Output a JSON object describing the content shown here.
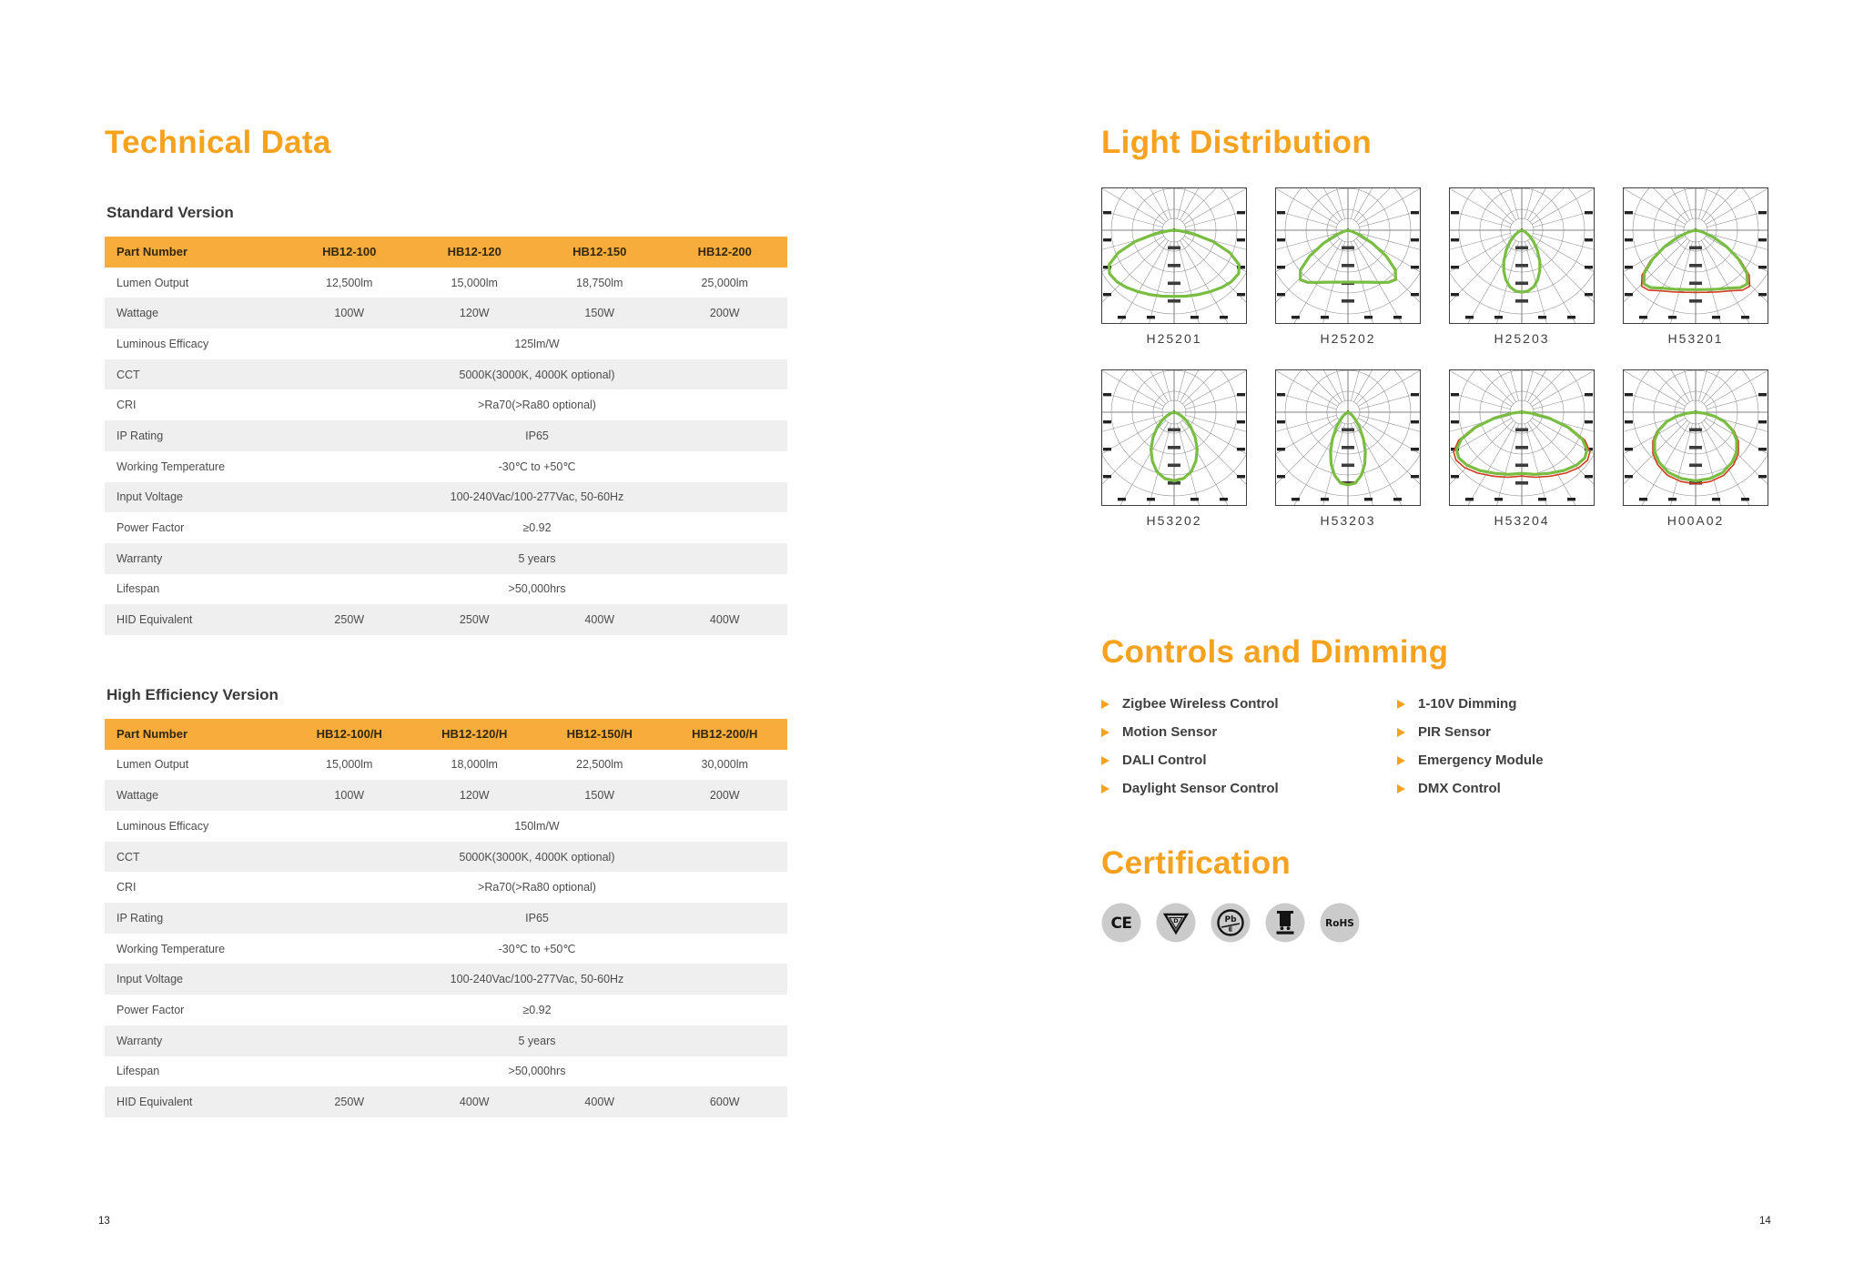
{
  "colors": {
    "accent": "#F6A21E",
    "table_header": "#F7AC3B",
    "row_alt": "#EFEFEF",
    "curve_green": "#79BE43",
    "curve_red": "#D03A20",
    "badge_gray": "#CBCBCB"
  },
  "page": {
    "left_number": "13",
    "right_number": "14"
  },
  "left": {
    "title": "Technical Data",
    "tables": [
      {
        "subtitle": "Standard Version",
        "header": [
          "Part Number",
          "HB12-100",
          "HB12-120",
          "HB12-150",
          "HB12-200"
        ],
        "rows": [
          {
            "label": "Lumen Output",
            "values": [
              "12,500lm",
              "15,000lm",
              "18,750lm",
              "25,000lm"
            ]
          },
          {
            "label": "Wattage",
            "values": [
              "100W",
              "120W",
              "150W",
              "200W"
            ]
          },
          {
            "label": "Luminous Efficacy",
            "span": "125lm/W"
          },
          {
            "label": "CCT",
            "span": "5000K(3000K, 4000K optional)"
          },
          {
            "label": "CRI",
            "span": ">Ra70(>Ra80 optional)"
          },
          {
            "label": "IP Rating",
            "span": "IP65"
          },
          {
            "label": "Working Temperature",
            "span": "-30℃ to +50℃"
          },
          {
            "label": "Input Voltage",
            "span": "100-240Vac/100-277Vac, 50-60Hz"
          },
          {
            "label": "Power Factor",
            "span": "≥0.92"
          },
          {
            "label": "Warranty",
            "span": "5 years"
          },
          {
            "label": "Lifespan",
            "span": ">50,000hrs"
          },
          {
            "label": "HID Equivalent",
            "values": [
              "250W",
              "250W",
              "400W",
              "400W"
            ]
          }
        ]
      },
      {
        "subtitle": "High Efficiency Version",
        "header": [
          "Part Number",
          "HB12-100/H",
          "HB12-120/H",
          "HB12-150/H",
          "HB12-200/H"
        ],
        "rows": [
          {
            "label": "Lumen Output",
            "values": [
              "15,000lm",
              "18,000lm",
              "22,500lm",
              "30,000lm"
            ]
          },
          {
            "label": "Wattage",
            "values": [
              "100W",
              "120W",
              "150W",
              "200W"
            ]
          },
          {
            "label": "Luminous Efficacy",
            "span": "150lm/W"
          },
          {
            "label": "CCT",
            "span": "5000K(3000K, 4000K optional)"
          },
          {
            "label": "CRI",
            "span": ">Ra70(>Ra80 optional)"
          },
          {
            "label": "IP Rating",
            "span": "IP65"
          },
          {
            "label": "Working Temperature",
            "span": "-30℃ to +50℃"
          },
          {
            "label": "Input Voltage",
            "span": "100-240Vac/100-277Vac, 50-60Hz"
          },
          {
            "label": "Power Factor",
            "span": "≥0.92"
          },
          {
            "label": "Warranty",
            "span": "5 years"
          },
          {
            "label": "Lifespan",
            "span": ">50,000hrs"
          },
          {
            "label": "HID Equivalent",
            "values": [
              "250W",
              "400W",
              "400W",
              "600W"
            ]
          }
        ]
      }
    ]
  },
  "right": {
    "light_distribution": {
      "title": "Light Distribution"
    },
    "controls": {
      "title": "Controls and Dimming",
      "left_items": [
        "Zigbee Wireless Control",
        "Motion Sensor",
        "DALI Control",
        "Daylight Sensor Control"
      ],
      "right_items": [
        "1-10V Dimming",
        "PIR Sensor",
        "Emergency Module",
        "DMX Control"
      ]
    },
    "certification": {
      "title": "Certification",
      "badges": [
        {
          "id": "ce",
          "label": "CE"
        },
        {
          "id": "d-mark",
          "label": "D"
        },
        {
          "id": "pb-free",
          "label": "Pb",
          "sub": "E"
        },
        {
          "id": "weee",
          "label": ""
        },
        {
          "id": "rohs",
          "label": "RoHS"
        }
      ]
    }
  },
  "chart_data": {
    "type": "polar-distribution",
    "note": "photometric light distribution curves; profile = [angle_deg_from_nadir, radius_fraction]",
    "charts": [
      {
        "label": "H25201",
        "red": false,
        "profile": [
          [
            0,
            0.79
          ],
          [
            10,
            0.8
          ],
          [
            20,
            0.82
          ],
          [
            30,
            0.85
          ],
          [
            40,
            0.89
          ],
          [
            48,
            0.92
          ],
          [
            56,
            0.93
          ],
          [
            62,
            0.88
          ],
          [
            68,
            0.72
          ],
          [
            74,
            0.48
          ],
          [
            80,
            0.22
          ],
          [
            85,
            0.06
          ]
        ]
      },
      {
        "label": "H25202",
        "red": "subtle",
        "profile": [
          [
            0,
            0.62
          ],
          [
            10,
            0.63
          ],
          [
            20,
            0.66
          ],
          [
            30,
            0.72
          ],
          [
            38,
            0.79
          ],
          [
            44,
            0.82
          ],
          [
            50,
            0.74
          ],
          [
            56,
            0.55
          ],
          [
            62,
            0.33
          ],
          [
            68,
            0.16
          ],
          [
            74,
            0.05
          ]
        ]
      },
      {
        "label": "H25203",
        "red": false,
        "profile": [
          [
            0,
            0.74
          ],
          [
            6,
            0.73
          ],
          [
            12,
            0.69
          ],
          [
            18,
            0.62
          ],
          [
            24,
            0.53
          ],
          [
            30,
            0.43
          ],
          [
            38,
            0.3
          ],
          [
            46,
            0.19
          ],
          [
            54,
            0.11
          ],
          [
            62,
            0.05
          ],
          [
            70,
            0.02
          ]
        ]
      },
      {
        "label": "H53201",
        "red": "strong",
        "profile": [
          [
            0,
            0.71
          ],
          [
            10,
            0.72
          ],
          [
            20,
            0.75
          ],
          [
            30,
            0.8
          ],
          [
            38,
            0.87
          ],
          [
            44,
            0.89
          ],
          [
            50,
            0.8
          ],
          [
            56,
            0.62
          ],
          [
            62,
            0.42
          ],
          [
            68,
            0.24
          ],
          [
            74,
            0.1
          ],
          [
            80,
            0.03
          ]
        ]
      },
      {
        "label": "H53202",
        "red": "subtle",
        "profile": [
          [
            0,
            0.82
          ],
          [
            8,
            0.8
          ],
          [
            16,
            0.74
          ],
          [
            24,
            0.64
          ],
          [
            32,
            0.52
          ],
          [
            40,
            0.39
          ],
          [
            48,
            0.27
          ],
          [
            56,
            0.17
          ],
          [
            64,
            0.09
          ],
          [
            72,
            0.04
          ]
        ]
      },
      {
        "label": "H53203",
        "red": "subtle",
        "profile": [
          [
            0,
            0.87
          ],
          [
            6,
            0.85
          ],
          [
            12,
            0.77
          ],
          [
            18,
            0.65
          ],
          [
            24,
            0.51
          ],
          [
            30,
            0.37
          ],
          [
            38,
            0.22
          ],
          [
            46,
            0.12
          ],
          [
            54,
            0.06
          ],
          [
            62,
            0.02
          ]
        ]
      },
      {
        "label": "H53204",
        "red": "strong",
        "profile": [
          [
            0,
            0.73
          ],
          [
            12,
            0.76
          ],
          [
            24,
            0.8
          ],
          [
            36,
            0.86
          ],
          [
            46,
            0.91
          ],
          [
            54,
            0.93
          ],
          [
            60,
            0.9
          ],
          [
            66,
            0.79
          ],
          [
            72,
            0.58
          ],
          [
            78,
            0.33
          ],
          [
            84,
            0.12
          ],
          [
            88,
            0.03
          ]
        ]
      },
      {
        "label": "H00A02",
        "red": "strong",
        "profile": [
          [
            0,
            0.82
          ],
          [
            12,
            0.81
          ],
          [
            24,
            0.79
          ],
          [
            36,
            0.74
          ],
          [
            46,
            0.68
          ],
          [
            56,
            0.59
          ],
          [
            64,
            0.49
          ],
          [
            72,
            0.36
          ],
          [
            78,
            0.23
          ],
          [
            83,
            0.1
          ]
        ]
      }
    ]
  }
}
